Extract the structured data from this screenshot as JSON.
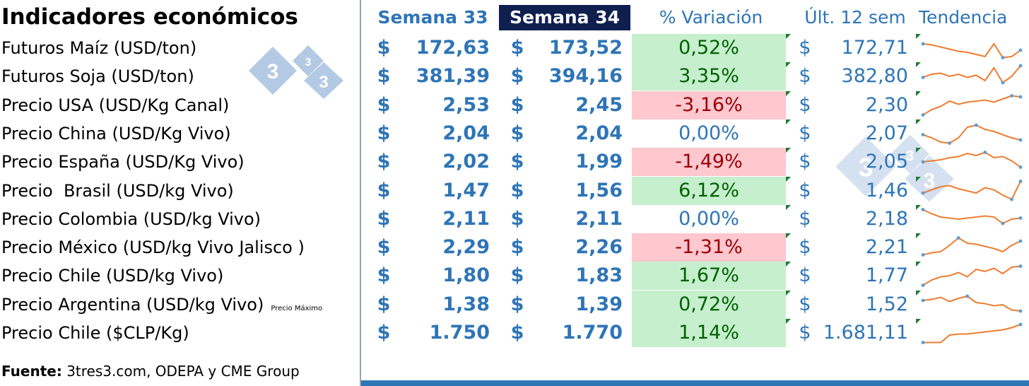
{
  "title": "Indicadores económicos",
  "headers": {
    "week33": "Semana 33",
    "week34": "Semana 34",
    "variation": "% Variación",
    "last12": "Últ. 12 sem",
    "trend": "Tendencia"
  },
  "currency_symbol": "$",
  "logo_text": [
    "3",
    "3",
    "3"
  ],
  "colors": {
    "accent_blue": "#2e75b6",
    "header_navy": "#0f1f4f",
    "positive_fill": "#c6efce",
    "positive_text": "#006100",
    "negative_fill": "#ffc7ce",
    "negative_text": "#9c0006",
    "sparkline": "#ed7d31",
    "sparkline_marker": "#5b9bd5"
  },
  "rows": [
    {
      "label": "Futuros Maíz (USD/ton)",
      "note": "",
      "week33": "172,63",
      "week34": "173,52",
      "variation": "0,52%",
      "variation_sign": "pos",
      "last12": "172,71",
      "trend": [
        0.3,
        0.35,
        0.45,
        0.55,
        0.65,
        0.7,
        0.8,
        0.9,
        0.3,
        0.95,
        0.9,
        0.6
      ]
    },
    {
      "label": "Futuros Soja (USD/ton)",
      "note": "",
      "week33": "381,39",
      "week34": "394,16",
      "variation": "3,35%",
      "variation_sign": "pos",
      "last12": "382,80",
      "trend": [
        0.55,
        0.4,
        0.35,
        0.5,
        0.4,
        0.55,
        0.45,
        0.7,
        0.1,
        0.8,
        0.5,
        0.0
      ]
    },
    {
      "label": "Precio USA (USD/Kg Canal)",
      "note": "",
      "week33": "2,53",
      "week34": "2,45",
      "variation": "-3,16%",
      "variation_sign": "neg",
      "last12": "2,30",
      "trend": [
        0.95,
        0.7,
        0.55,
        0.3,
        0.45,
        0.35,
        0.3,
        0.25,
        0.35,
        0.2,
        0.05,
        0.1
      ]
    },
    {
      "label": "Precio China (USD/Kg Vivo)",
      "note": "",
      "week33": "2,04",
      "week34": "2,04",
      "variation": "0,00%",
      "variation_sign": "zero",
      "last12": "2,07",
      "trend": [
        0.55,
        0.7,
        0.9,
        0.95,
        0.7,
        0.2,
        0.1,
        0.3,
        0.4,
        0.55,
        0.7,
        0.8
      ]
    },
    {
      "label": "Precio España (USD/Kg Vivo)",
      "note": "",
      "week33": "2,02",
      "week34": "1,99",
      "variation": "-1,49%",
      "variation_sign": "neg",
      "last12": "2,05",
      "trend": [
        0.5,
        0.45,
        0.4,
        0.3,
        0.25,
        0.1,
        0.2,
        0.05,
        0.3,
        0.25,
        0.45,
        0.75
      ]
    },
    {
      "label": "Precio  Brasil (USD/kg Vivo)",
      "note": "",
      "week33": "1,47",
      "week34": "1,56",
      "variation": "6,12%",
      "variation_sign": "pos",
      "last12": "1,46",
      "trend": [
        0.6,
        0.45,
        0.3,
        0.25,
        0.4,
        0.5,
        0.6,
        0.35,
        0.45,
        0.7,
        0.9,
        0.05
      ]
    },
    {
      "label": "Precio Colombia (USD/kg Vivo)",
      "note": "",
      "week33": "2,11",
      "week34": "2,11",
      "variation": "0,00%",
      "variation_sign": "zero",
      "last12": "2,18",
      "trend": [
        0.05,
        0.25,
        0.4,
        0.45,
        0.5,
        0.45,
        0.4,
        0.35,
        0.4,
        0.7,
        0.5,
        0.45
      ]
    },
    {
      "label": "Precio México (USD/kg Vivo Jalisco )",
      "note": "",
      "week33": "2,29",
      "week34": "2,26",
      "variation": "-1,31%",
      "variation_sign": "neg",
      "last12": "2,21",
      "trend": [
        0.85,
        0.75,
        0.7,
        0.4,
        0.05,
        0.3,
        0.35,
        0.45,
        0.55,
        0.7,
        0.4,
        0.2
      ]
    },
    {
      "label": "Precio Chile (USD/kg Vivo)",
      "note": "",
      "week33": "1,80",
      "week34": "1,83",
      "variation": "1,67%",
      "variation_sign": "pos",
      "last12": "1,77",
      "trend": [
        0.95,
        0.7,
        0.55,
        0.5,
        0.35,
        0.55,
        0.2,
        0.3,
        0.15,
        0.4,
        0.1,
        0.05
      ]
    },
    {
      "label": "Precio Argentina (USD/kg Vivo)",
      "note": "Precio Máximo",
      "week33": "1,38",
      "week34": "1,39",
      "variation": "0,72%",
      "variation_sign": "pos",
      "last12": "1,52",
      "trend": [
        0.3,
        0.25,
        0.15,
        0.35,
        0.2,
        0.1,
        0.4,
        0.45,
        0.55,
        0.5,
        0.75,
        0.8
      ]
    },
    {
      "label": "Precio Chile ($CLP/Kg)",
      "note": "",
      "week33": "1.750",
      "week34": "1.770",
      "variation": "1,14%",
      "variation_sign": "pos",
      "last12": "1.681,11",
      "trend": [
        0.95,
        0.95,
        0.95,
        0.6,
        0.55,
        0.55,
        0.5,
        0.45,
        0.4,
        0.35,
        0.25,
        0.1
      ]
    }
  ],
  "source": {
    "label": "Fuente:",
    "text": " 3tres3.com, ODEPA y CME Group"
  }
}
